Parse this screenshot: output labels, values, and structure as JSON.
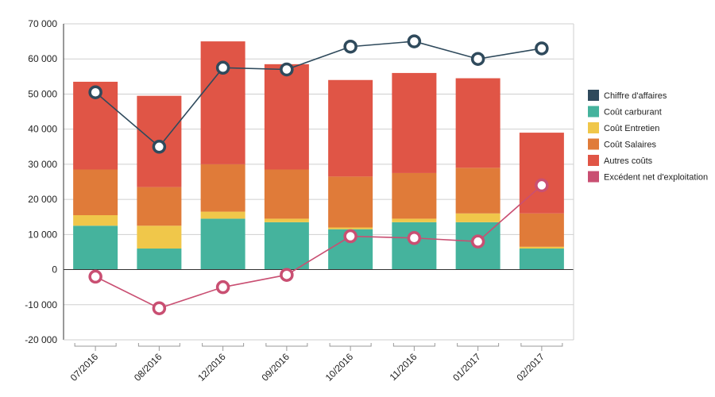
{
  "chart_data": {
    "type": "bar",
    "stacked": true,
    "categories": [
      "07/2016",
      "08/2016",
      "12/2016",
      "09/2016",
      "10/2016",
      "11/2016",
      "01/2017",
      "02/2017"
    ],
    "ylim": [
      -20000,
      70000
    ],
    "yticks": [
      -20000,
      -10000,
      0,
      10000,
      20000,
      30000,
      40000,
      50000,
      60000,
      70000
    ],
    "ytick_labels": [
      "-20 000",
      "-10 000",
      "0",
      "10 000",
      "20 000",
      "30 000",
      "40 000",
      "50 000",
      "60 000",
      "70 000"
    ],
    "grid": true,
    "legend_position": "right",
    "series": [
      {
        "name": "Chiffre d'affaires",
        "type": "line",
        "color": "#2f4a5c",
        "values": [
          50500,
          35000,
          57500,
          57000,
          63500,
          65000,
          60000,
          63000
        ]
      },
      {
        "name": "Coût carburant",
        "type": "bar",
        "color": "#45b39d",
        "values": [
          12500,
          6000,
          14500,
          13500,
          11500,
          13500,
          13500,
          6000
        ]
      },
      {
        "name": "Coût Entretien",
        "type": "bar",
        "color": "#f0c74a",
        "values": [
          3000,
          6500,
          2000,
          1000,
          500,
          1000,
          2500,
          500
        ]
      },
      {
        "name": "Coût Salaires",
        "type": "bar",
        "color": "#e07b39",
        "values": [
          13000,
          11000,
          13500,
          14000,
          14500,
          13000,
          13000,
          9500
        ]
      },
      {
        "name": "Autres coûts",
        "type": "bar",
        "color": "#e05546",
        "values": [
          25000,
          26000,
          35000,
          30000,
          27500,
          28500,
          25500,
          23000
        ]
      },
      {
        "name": "Excédent net d'exploitation",
        "type": "line",
        "color": "#c94f72",
        "values": [
          -2000,
          -11000,
          -5000,
          -1500,
          9500,
          9000,
          8000,
          24000
        ]
      }
    ]
  }
}
